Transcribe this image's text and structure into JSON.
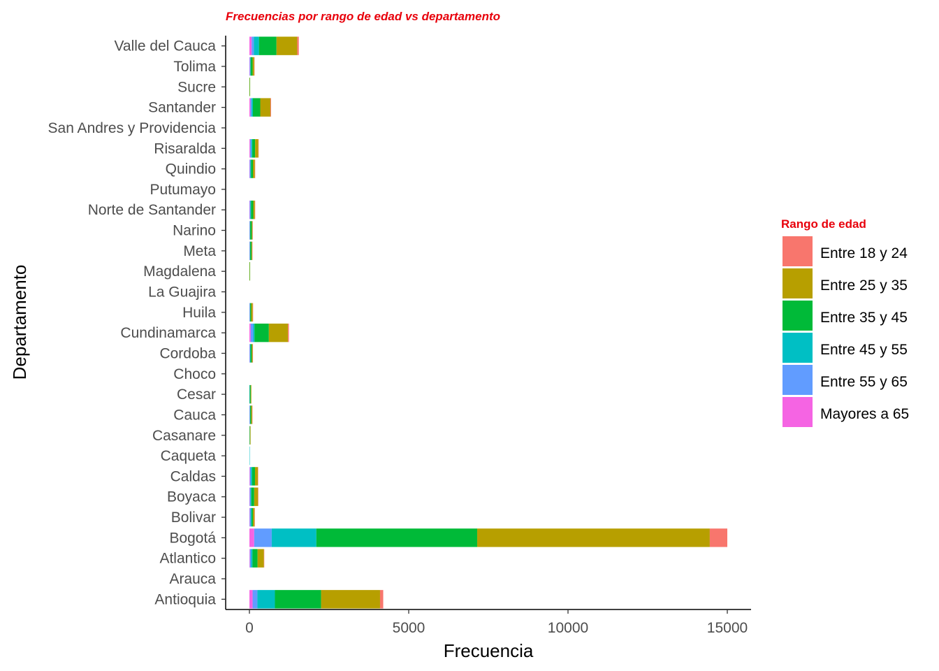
{
  "chart_data": {
    "type": "bar",
    "orientation": "horizontal",
    "stacked": true,
    "title": "Frecuencias por rango de edad vs departamento",
    "xlabel": "Frecuencia",
    "ylabel": "Departamento",
    "xlim": [
      -700,
      15750
    ],
    "xticks": [
      0,
      5000,
      10000,
      15000
    ],
    "grid": false,
    "legend": {
      "title": "Rango de edad",
      "position": "right"
    },
    "categories": [
      "Antioquia",
      "Arauca",
      "Atlantico",
      "Bogotá",
      "Bolivar",
      "Boyaca",
      "Caldas",
      "Caqueta",
      "Casanare",
      "Cauca",
      "Cesar",
      "Choco",
      "Cordoba",
      "Cundinamarca",
      "Huila",
      "La Guajira",
      "Magdalena",
      "Meta",
      "Narino",
      "Norte de Santander",
      "Putumayo",
      "Quindio",
      "Risaralda",
      "San Andres y Providencia",
      "Santander",
      "Sucre",
      "Tolima",
      "Valle del Cauca"
    ],
    "series": [
      {
        "name": "Mayores a 65",
        "color": "#f564e3",
        "values": [
          100,
          0,
          15,
          150,
          10,
          10,
          15,
          0,
          0,
          5,
          0,
          0,
          5,
          40,
          5,
          0,
          0,
          5,
          5,
          10,
          0,
          10,
          20,
          0,
          30,
          0,
          10,
          70
        ]
      },
      {
        "name": "Entre 55 y 65",
        "color": "#619cff",
        "values": [
          150,
          0,
          40,
          550,
          30,
          25,
          30,
          0,
          0,
          10,
          5,
          0,
          15,
          80,
          10,
          0,
          0,
          10,
          10,
          20,
          0,
          20,
          40,
          0,
          40,
          0,
          15,
          70
        ]
      },
      {
        "name": "Entre 45 y 55",
        "color": "#00bfc4",
        "values": [
          550,
          0,
          40,
          1400,
          30,
          25,
          40,
          5,
          5,
          10,
          5,
          0,
          15,
          40,
          10,
          0,
          0,
          10,
          10,
          20,
          0,
          20,
          30,
          0,
          40,
          0,
          15,
          160
        ]
      },
      {
        "name": "Entre 35 y 45",
        "color": "#00ba38",
        "values": [
          1450,
          0,
          160,
          5050,
          40,
          90,
          90,
          0,
          10,
          30,
          30,
          0,
          40,
          450,
          30,
          0,
          10,
          40,
          50,
          70,
          0,
          60,
          90,
          0,
          230,
          10,
          60,
          550
        ]
      },
      {
        "name": "Entre 25 y 35",
        "color": "#b79f00",
        "values": [
          1850,
          0,
          200,
          7300,
          50,
          120,
          90,
          0,
          20,
          30,
          20,
          0,
          25,
          600,
          50,
          0,
          10,
          20,
          20,
          50,
          0,
          60,
          100,
          0,
          320,
          10,
          50,
          650
        ]
      },
      {
        "name": "Entre 18 y 24",
        "color": "#f8766d",
        "values": [
          100,
          0,
          10,
          550,
          5,
          5,
          10,
          0,
          0,
          5,
          0,
          0,
          5,
          30,
          5,
          0,
          0,
          5,
          5,
          5,
          0,
          5,
          10,
          0,
          20,
          0,
          5,
          50
        ]
      }
    ],
    "legend_order": [
      "Entre 18 y 24",
      "Entre 25 y 35",
      "Entre 35 y 45",
      "Entre 45 y 55",
      "Entre 55 y 65",
      "Mayores a 65"
    ]
  }
}
